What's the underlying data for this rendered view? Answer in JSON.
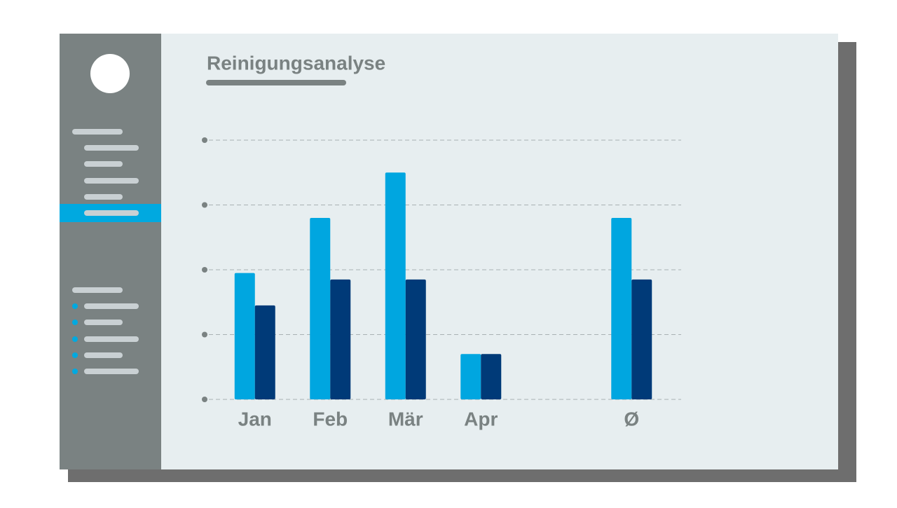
{
  "chart_data": {
    "type": "bar",
    "title": "Reinigungsanalyse",
    "categories": [
      "Jan",
      "Feb",
      "Mär",
      "Apr",
      null,
      "Ø"
    ],
    "series": [
      {
        "color": "#00a6e0",
        "values": [
          1.95,
          2.8,
          3.5,
          0.7,
          null,
          2.8
        ]
      },
      {
        "color": "#003a78",
        "values": [
          1.45,
          1.85,
          1.85,
          0.7,
          null,
          1.85
        ]
      }
    ],
    "ylim": [
      0,
      4
    ],
    "yticks": [
      0,
      1,
      2,
      3,
      4
    ],
    "grid": true
  }
}
